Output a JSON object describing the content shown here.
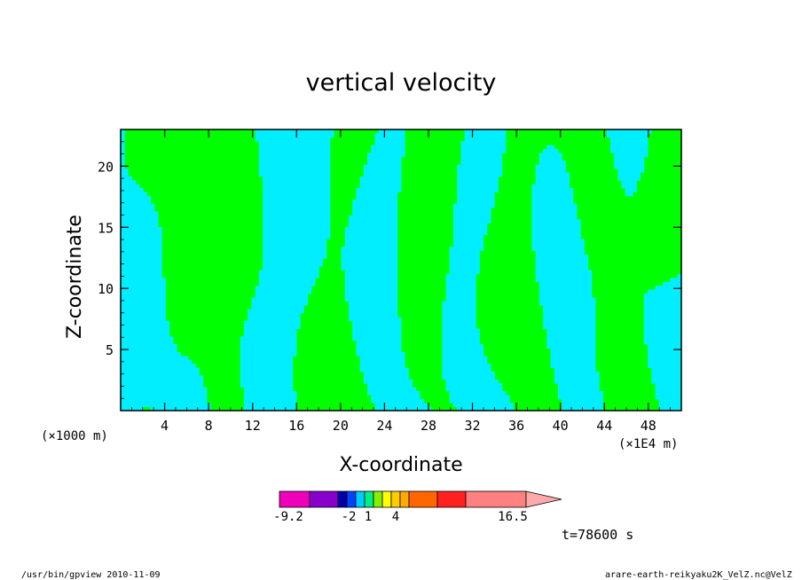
{
  "chart_data": {
    "type": "heatmap",
    "title": "vertical velocity",
    "xlabel": "X-coordinate",
    "ylabel": "Z-coordinate",
    "x_unit_left": "(×1000 m)",
    "x_unit_right": "(×1E4 m)",
    "xlim": [
      0,
      51
    ],
    "ylim": [
      0,
      23
    ],
    "xticks": [
      "4",
      "8",
      "12",
      "16",
      "20",
      "24",
      "28",
      "32",
      "36",
      "40",
      "44",
      "48"
    ],
    "yticks": [
      "5",
      "10",
      "15",
      "20"
    ],
    "fields": {
      "positive_color": "#00ff00",
      "negative_color": "#00eeff",
      "contour_color": "#2a2a2a"
    },
    "colorbar": {
      "colors": [
        "#ee00bb",
        "#8800cc",
        "#0000aa",
        "#0044ff",
        "#00ccff",
        "#00ee88",
        "#88ee00",
        "#ffff00",
        "#ffcc00",
        "#ffaa00",
        "#ff6600",
        "#ff2020",
        "#ff8080"
      ],
      "labels": [
        "-9.2",
        "-2",
        "1",
        "4",
        "16.5"
      ],
      "extend": "max"
    },
    "time_label": "t=78600 s"
  },
  "footer": {
    "left": "/usr/bin/gpview 2010-11-09",
    "right": "arare-earth-reikyaku2K_VelZ.nc@VelZ"
  }
}
